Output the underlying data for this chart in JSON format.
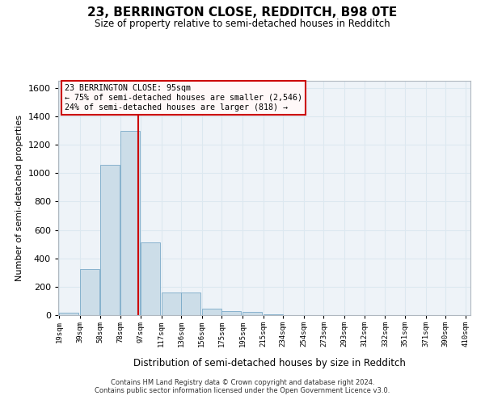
{
  "title": "23, BERRINGTON CLOSE, REDDITCH, B98 0TE",
  "subtitle": "Size of property relative to semi-detached houses in Redditch",
  "xlabel": "Distribution of semi-detached houses by size in Redditch",
  "ylabel": "Number of semi-detached properties",
  "footer_line1": "Contains HM Land Registry data © Crown copyright and database right 2024.",
  "footer_line2": "Contains public sector information licensed under the Open Government Licence v3.0.",
  "annotation_line1": "23 BERRINGTON CLOSE: 95sqm",
  "annotation_line2": "← 75% of semi-detached houses are smaller (2,546)",
  "annotation_line3": "24% of semi-detached houses are larger (818) →",
  "property_size": 95,
  "bin_starts": [
    19,
    39,
    58,
    78,
    97,
    117,
    136,
    156,
    175,
    195,
    215,
    234,
    254,
    273,
    293,
    312,
    332,
    351,
    371,
    390
  ],
  "bin_labels": [
    "19sqm",
    "39sqm",
    "58sqm",
    "78sqm",
    "97sqm",
    "117sqm",
    "136sqm",
    "156sqm",
    "175sqm",
    "195sqm",
    "215sqm",
    "234sqm",
    "254sqm",
    "273sqm",
    "293sqm",
    "312sqm",
    "332sqm",
    "351sqm",
    "371sqm",
    "390sqm",
    "410sqm"
  ],
  "bar_heights": [
    15,
    325,
    1060,
    1300,
    510,
    160,
    160,
    45,
    30,
    20,
    5,
    0,
    0,
    0,
    0,
    0,
    0,
    0,
    0,
    0
  ],
  "bar_color": "#ccdde8",
  "bar_edge_color": "#7aaac8",
  "vline_color": "#cc0000",
  "vline_x": 95,
  "ylim": [
    0,
    1650
  ],
  "yticks": [
    0,
    200,
    400,
    600,
    800,
    1000,
    1200,
    1400,
    1600
  ],
  "grid_color": "#dce8f0",
  "bg_color": "#eef3f8",
  "annotation_facecolor": "#fff8f8",
  "annotation_edgecolor": "#cc0000"
}
